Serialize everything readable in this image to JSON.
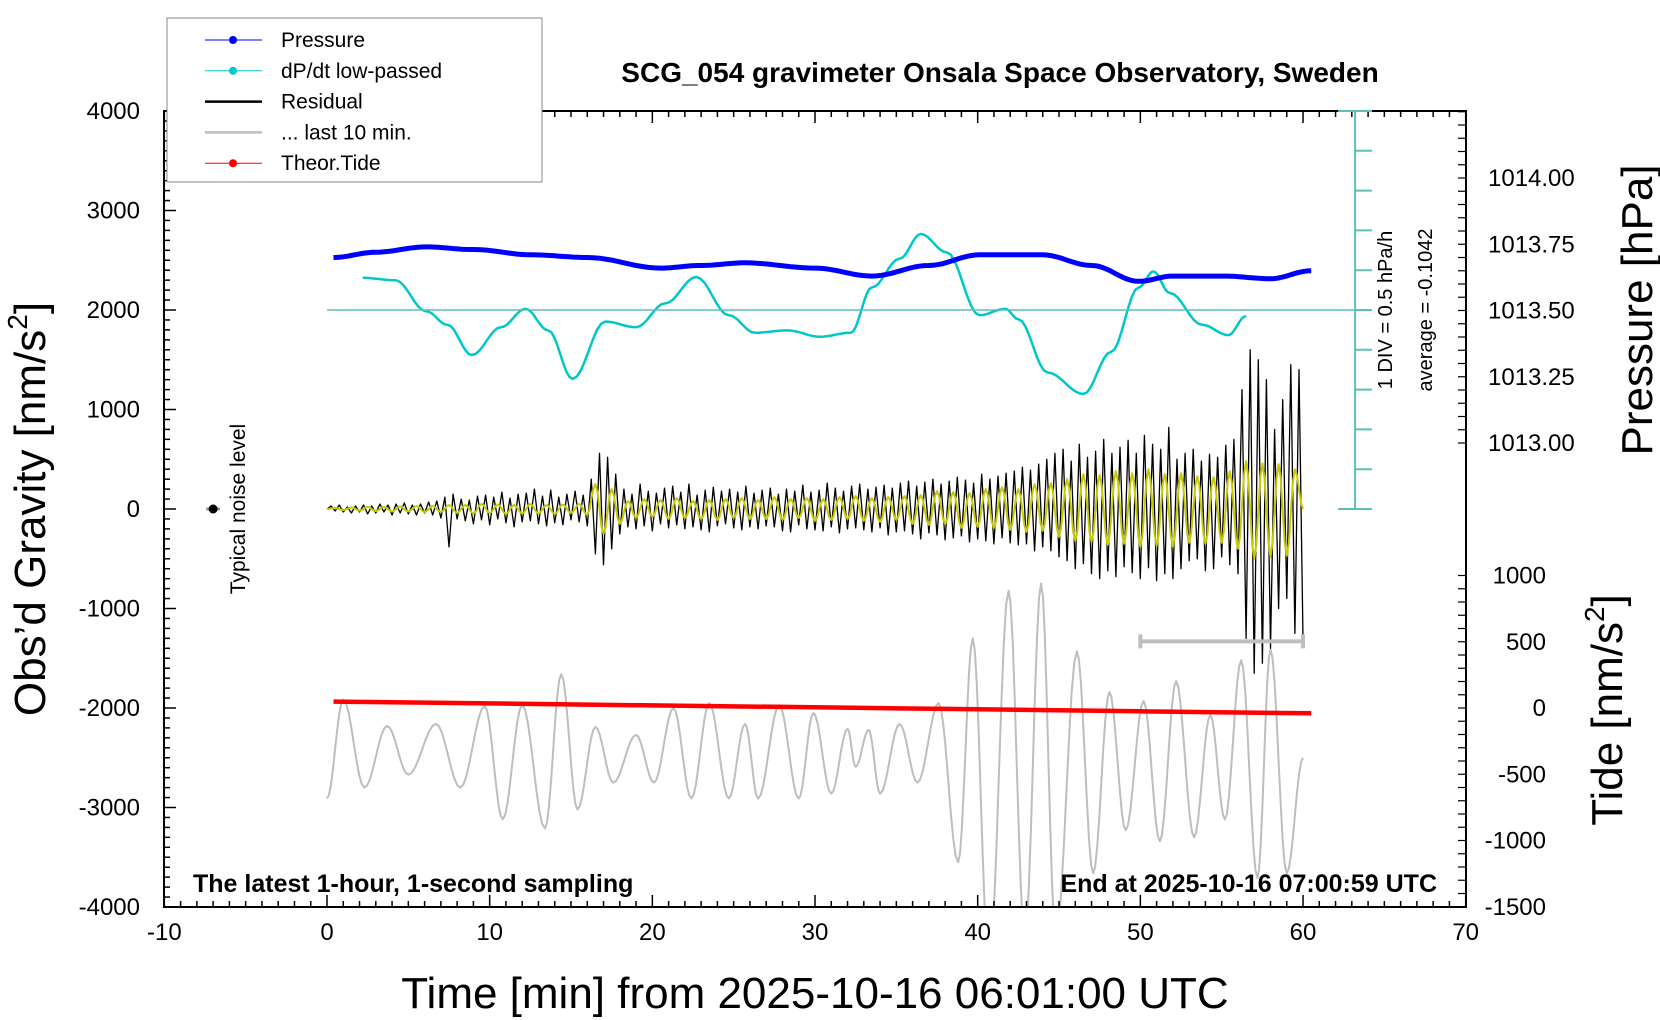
{
  "chart_data": {
    "type": "line",
    "title": "SCG_054 gravimeter Onsala Space Observatory, Sweden",
    "xlabel": "Time [min] from 2025-10-16 06:01:00 UTC",
    "ylabel": "Obs’d Gravity [nm/s",
    "ylabel_sup": "2",
    "ylabel_tail": "]",
    "pressure_label": "Pressure [hPa]",
    "tide_label": "Tide [nm/s",
    "tide_label_sup": "2",
    "tide_label_tail": "]",
    "xlim": [
      -10,
      70
    ],
    "ylim": [
      -4000,
      4000
    ],
    "xticks": [
      "-10",
      "0",
      "10",
      "20",
      "30",
      "40",
      "50",
      "60",
      "70"
    ],
    "yticks": [
      "4000",
      "3000",
      "2000",
      "1000",
      "0",
      "-1000",
      "-2000",
      "-3000",
      "-4000"
    ],
    "pressure_ticks": [
      "1014.00",
      "1013.75",
      "1013.50",
      "1013.25",
      "1013.00"
    ],
    "tide_ticks": [
      "1000",
      "500",
      "0",
      "-500",
      "-1000",
      "-1500"
    ],
    "bottom_left_note": "The latest 1-hour, 1-second sampling",
    "bottom_right_note": "End at 2025-10-16 07:00:59 UTC",
    "noise_label": "Typical noise level",
    "dpdt_scale": {
      "div_label": "1 DIV = 0.5 hPa/h",
      "average_label": "average = -0.1042",
      "average": -0.1042,
      "per_div": 0.5
    },
    "colors": {
      "pressure": "#0000ff",
      "dpdt": "#00c8c8",
      "residual": "#000000",
      "last10": "#bebebe",
      "tide": "#ff0000",
      "filtered": "#c8c800",
      "scale": "#5fbdbd"
    },
    "legend": [
      {
        "label": "Pressure",
        "color": "#0000ff",
        "marker": true
      },
      {
        "label": "dP/dt low-passed",
        "color": "#00c8c8",
        "marker": true
      },
      {
        "label": "Residual",
        "color": "#000000",
        "marker": false
      },
      {
        "label": "... last 10 min.",
        "color": "#bebebe",
        "marker": false
      },
      {
        "label": "Theor.Tide",
        "color": "#ff0000",
        "marker": true
      }
    ],
    "series": [
      {
        "name": "Pressure",
        "unit": "hPa",
        "points": [
          [
            0.4,
            1013.7
          ],
          [
            3,
            1013.72
          ],
          [
            6.1,
            1013.74
          ],
          [
            9,
            1013.73
          ],
          [
            12.6,
            1013.71
          ],
          [
            16,
            1013.7
          ],
          [
            20.5,
            1013.66
          ],
          [
            23,
            1013.67
          ],
          [
            25.7,
            1013.68
          ],
          [
            30,
            1013.66
          ],
          [
            33.5,
            1013.63
          ],
          [
            37,
            1013.67
          ],
          [
            40.1,
            1013.71
          ],
          [
            44,
            1013.71
          ],
          [
            47,
            1013.67
          ],
          [
            49.9,
            1013.61
          ],
          [
            52,
            1013.63
          ],
          [
            55.1,
            1013.63
          ],
          [
            58,
            1013.62
          ],
          [
            60.5,
            1013.65
          ]
        ]
      },
      {
        "name": "dP/dt low-passed",
        "unit": "hPa/h",
        "points": [
          [
            2.2,
            0.3
          ],
          [
            4.2,
            0.27
          ],
          [
            6.1,
            -0.12
          ],
          [
            7.4,
            -0.29
          ],
          [
            8.9,
            -0.67
          ],
          [
            10.7,
            -0.32
          ],
          [
            12.2,
            -0.09
          ],
          [
            13.6,
            -0.36
          ],
          [
            15.1,
            -0.97
          ],
          [
            17.1,
            -0.25
          ],
          [
            19.0,
            -0.32
          ],
          [
            20.8,
            -0.02
          ],
          [
            22.7,
            0.31
          ],
          [
            24.7,
            -0.17
          ],
          [
            26.3,
            -0.39
          ],
          [
            28.3,
            -0.36
          ],
          [
            30.3,
            -0.44
          ],
          [
            32.2,
            -0.39
          ],
          [
            33.5,
            0.18
          ],
          [
            35.2,
            0.54
          ],
          [
            36.5,
            0.85
          ],
          [
            38.1,
            0.62
          ],
          [
            40.1,
            -0.17
          ],
          [
            41.7,
            -0.09
          ],
          [
            42.5,
            -0.22
          ],
          [
            44.3,
            -0.89
          ],
          [
            46.5,
            -1.16
          ],
          [
            48.2,
            -0.63
          ],
          [
            49.9,
            0.18
          ],
          [
            50.8,
            0.38
          ],
          [
            51.8,
            0.11
          ],
          [
            53.8,
            -0.29
          ],
          [
            55.4,
            -0.42
          ],
          [
            56.5,
            -0.18
          ]
        ]
      },
      {
        "name": "Residual",
        "unit": "nm/s2",
        "t_start": 0,
        "t_step": 0.25,
        "values": [
          0,
          30,
          -20,
          40,
          -30,
          20,
          -40,
          30,
          -30,
          40,
          -50,
          30,
          -40,
          50,
          -30,
          40,
          -60,
          50,
          -40,
          60,
          -50,
          40,
          -60,
          50,
          -40,
          70,
          -60,
          80,
          -90,
          120,
          -380,
          150,
          -100,
          100,
          -120,
          90,
          -150,
          130,
          -110,
          140,
          -160,
          120,
          -100,
          170,
          -140,
          110,
          -180,
          150,
          -130,
          160,
          -120,
          200,
          -150,
          130,
          -170,
          190,
          -140,
          120,
          -160,
          150,
          -110,
          180,
          -130,
          140,
          -170,
          300,
          -450,
          560,
          -560,
          520,
          -400,
          350,
          -250,
          200,
          -180,
          150,
          -200,
          250,
          -170,
          180,
          -220,
          160,
          -150,
          210,
          -190,
          230,
          -160,
          170,
          -200,
          250,
          -180,
          140,
          -210,
          190,
          -230,
          220,
          -170,
          180,
          -150,
          200,
          -190,
          170,
          -210,
          230,
          -180,
          160,
          -200,
          190,
          -170,
          210,
          -180,
          150,
          -220,
          200,
          -230,
          180,
          -160,
          240,
          -200,
          170,
          -210,
          190,
          -220,
          260,
          -180,
          210,
          -240,
          180,
          -200,
          230,
          -190,
          250,
          -210,
          200,
          -230,
          220,
          -190,
          240,
          -260,
          210,
          -230,
          260,
          -220,
          280,
          -250,
          230,
          -300,
          270,
          -240,
          300,
          -260,
          250,
          -310,
          280,
          -290,
          320,
          -270,
          290,
          -330,
          260,
          -300,
          350,
          -320,
          300,
          -350,
          330,
          -290,
          360,
          -340,
          380,
          -360,
          420,
          -350,
          390,
          -420,
          450,
          -380,
          500,
          -420,
          560,
          -480,
          600,
          -520,
          480,
          -600,
          650,
          -550,
          520,
          -650,
          580,
          -700,
          700,
          -620,
          560,
          -680,
          620,
          -580,
          690,
          -640,
          560,
          -700,
          740,
          -590,
          650,
          -720,
          600,
          -650,
          820,
          -700,
          500,
          -600,
          560,
          -520,
          600,
          -500,
          480,
          -620,
          550,
          -600,
          520,
          -480,
          640,
          -560,
          700,
          -650,
          1200,
          -1300,
          1600,
          -1650,
          1500,
          -1550,
          1300,
          -1400,
          800,
          -1000,
          1100,
          -900,
          1450,
          -1250,
          1400,
          -1300
        ]
      },
      {
        "unit": "nm/s2",
        "t_start": 0,
        "t_step": 0.5,
        "values": [
          0,
          10,
          -10,
          15,
          -15,
          20,
          -20,
          20,
          -25,
          25,
          -25,
          30,
          -30,
          30,
          -30,
          40,
          -40,
          40,
          -45,
          50,
          -40,
          45,
          -50,
          40,
          -45,
          50,
          -45,
          40,
          -50,
          45,
          -40,
          50,
          -60,
          250,
          -250,
          200,
          -150,
          80,
          -90,
          100,
          -80,
          90,
          -100,
          110,
          -90,
          80,
          -100,
          90,
          -110,
          100,
          -90,
          110,
          -100,
          90,
          -100,
          120,
          -110,
          100,
          -90,
          110,
          -120,
          100,
          -110,
          120,
          -100,
          130,
          -120,
          110,
          -130,
          120,
          -110,
          130,
          -150,
          140,
          -160,
          180,
          -150,
          170,
          -190,
          160,
          -180,
          200,
          -190,
          220,
          -210,
          200,
          -230,
          250,
          -220,
          260,
          -280,
          300,
          -320,
          350,
          -330,
          340,
          -360,
          380,
          -350,
          360,
          -380,
          400,
          -370,
          350,
          -380,
          360,
          -340,
          330,
          -350,
          320,
          -340,
          380,
          -400,
          480,
          -500,
          460,
          -480,
          450,
          -470,
          400,
          0
        ]
      },
      {
        "name": "... last 10 min.",
        "unit": "nm/s2",
        "points": [
          [
            0,
            -2910
          ],
          [
            1.0,
            -1915
          ],
          [
            2.3,
            -2800
          ],
          [
            3.7,
            -2180
          ],
          [
            5.0,
            -2670
          ],
          [
            6.7,
            -2160
          ],
          [
            8.2,
            -2800
          ],
          [
            9.7,
            -1980
          ],
          [
            10.8,
            -3120
          ],
          [
            12.0,
            -1970
          ],
          [
            13.4,
            -3210
          ],
          [
            14.4,
            -1660
          ],
          [
            15.4,
            -3020
          ],
          [
            16.5,
            -2190
          ],
          [
            17.6,
            -2750
          ],
          [
            19.0,
            -2270
          ],
          [
            20.1,
            -2750
          ],
          [
            21.3,
            -2000
          ],
          [
            22.4,
            -2910
          ],
          [
            23.5,
            -1950
          ],
          [
            24.7,
            -2910
          ],
          [
            25.7,
            -2160
          ],
          [
            26.5,
            -2910
          ],
          [
            27.8,
            -1970
          ],
          [
            29.0,
            -2910
          ],
          [
            29.9,
            -2050
          ],
          [
            31.0,
            -2860
          ],
          [
            32.0,
            -2210
          ],
          [
            32.5,
            -2590
          ],
          [
            33.3,
            -2220
          ],
          [
            34.0,
            -2860
          ],
          [
            35.2,
            -2160
          ],
          [
            36.3,
            -2750
          ],
          [
            37.6,
            -1950
          ],
          [
            38.8,
            -3550
          ],
          [
            39.7,
            -1300
          ],
          [
            40.7,
            -4570
          ],
          [
            41.9,
            -820
          ],
          [
            42.9,
            -4300
          ],
          [
            43.9,
            -750
          ],
          [
            44.8,
            -4300
          ],
          [
            46.1,
            -1430
          ],
          [
            47.1,
            -3660
          ],
          [
            48.1,
            -1840
          ],
          [
            49.1,
            -3230
          ],
          [
            50.2,
            -1930
          ],
          [
            51.2,
            -3340
          ],
          [
            52.2,
            -1730
          ],
          [
            53.3,
            -3300
          ],
          [
            54.3,
            -2070
          ],
          [
            55.2,
            -3120
          ],
          [
            56.2,
            -1520
          ],
          [
            57.2,
            -3710
          ],
          [
            58.0,
            -1410
          ],
          [
            59.0,
            -3660
          ],
          [
            60,
            -2500
          ]
        ]
      },
      {
        "name": "Theor.Tide",
        "unit": "nm/s2",
        "points": [
          [
            0.4,
            48
          ],
          [
            10,
            35
          ],
          [
            20,
            20
          ],
          [
            30,
            5
          ],
          [
            40,
            -10
          ],
          [
            50,
            -25
          ],
          [
            60.5,
            -40
          ]
        ]
      }
    ],
    "last10_range_min": [
      50,
      60
    ],
    "last10_bar_level": -1330,
    "noise_marker": {
      "x": -7,
      "y": 0
    }
  }
}
